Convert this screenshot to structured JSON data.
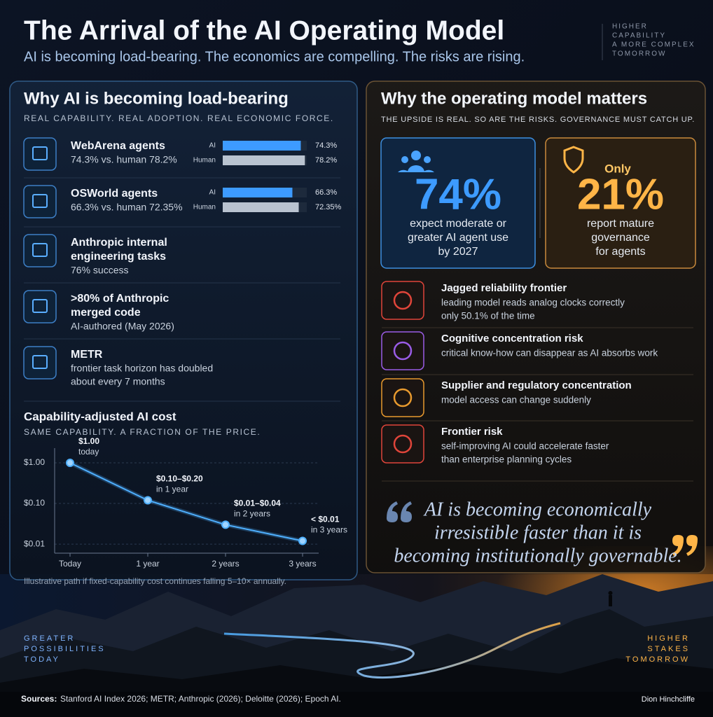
{
  "header": {
    "title": "The Arrival of the AI Operating Model",
    "subtitle": "AI is becoming load-bearing. The economics are compelling. The risks are rising.",
    "tagline": [
      "HIGHER",
      "CAPABILITY",
      "A MORE COMPLEX",
      "TOMORROW"
    ]
  },
  "left": {
    "heading": "Why AI is becoming load-bearing",
    "kicker": "REAL CAPABILITY. REAL ADOPTION. REAL ECONOMIC FORCE.",
    "items": [
      {
        "title": [
          "WebArena agents"
        ],
        "detail": [
          "74.3% vs. human 78.2%"
        ]
      },
      {
        "title": [
          "OSWorld agents"
        ],
        "detail": [
          "66.3% vs. human 72.35%"
        ]
      },
      {
        "title": [
          "Anthropic internal",
          "engineering tasks"
        ],
        "detail": [
          "76% success"
        ]
      },
      {
        "title": [
          ">80% of Anthropic",
          "merged code"
        ],
        "detail": [
          "AI-authored (May 2026)"
        ]
      },
      {
        "title": [
          "METR"
        ],
        "detail": [
          "frontier task horizon has doubled",
          "about every 7 months"
        ]
      }
    ]
  },
  "chart_data": [
    {
      "type": "bar",
      "orientation": "horizontal",
      "categories": [
        "AI",
        "Human"
      ],
      "values": [
        74.3,
        78.2
      ],
      "value_labels": [
        "74.3%",
        "78.2%"
      ],
      "colors": [
        "#3d9bff",
        "#b9c3d0"
      ],
      "xlim": [
        0,
        80
      ]
    },
    {
      "type": "bar",
      "orientation": "horizontal",
      "categories": [
        "AI",
        "Human"
      ],
      "values": [
        66.3,
        72.35
      ],
      "value_labels": [
        "66.3%",
        "72.35%"
      ],
      "colors": [
        "#3d9bff",
        "#b9c3d0"
      ],
      "xlim": [
        0,
        80
      ]
    },
    {
      "type": "line",
      "title": "Capability-adjusted AI cost",
      "subtitle": "SAME CAPABILITY. A FRACTION OF THE PRICE.",
      "categories": [
        "Today",
        "1 year",
        "2 years",
        "3 years"
      ],
      "values": [
        1,
        0.12,
        0.03,
        0.012
      ],
      "annotations": [
        {
          "label": "$1.00",
          "sub": "today"
        },
        {
          "label": "$0.10–$0.20",
          "sub": "in 1 year"
        },
        {
          "label": "$0.01–$0.04",
          "sub": "in 2 years"
        },
        {
          "label": "< $0.01",
          "sub": "in 3 years"
        }
      ],
      "log_scale": true,
      "ylim": [
        0.006,
        2.3
      ],
      "yticks": [
        {
          "value": 1,
          "label": "$1.00"
        },
        {
          "value": 0.1,
          "label": "$0.10"
        },
        {
          "value": 0.01,
          "label": "$0.01"
        }
      ],
      "grid": true,
      "color": "#4fb0ff",
      "note": "Illustrative path if fixed-capability cost continues falling 5–10× annually."
    }
  ],
  "right": {
    "heading": "Why the operating model matters",
    "kicker": "THE UPSIDE IS REAL. SO ARE THE RISKS. GOVERNANCE MUST CATCH UP.",
    "stats": [
      {
        "prefix": null,
        "figure": "74%",
        "detail": [
          "expect moderate or",
          "greater AI agent use",
          "by 2027"
        ]
      },
      {
        "prefix": "Only",
        "figure": "21%",
        "detail": [
          "report mature",
          "governance",
          "for agents"
        ]
      }
    ],
    "risks": [
      {
        "title": "Jagged reliability frontier",
        "detail": [
          "leading model reads analog clocks correctly",
          "only 50.1% of the time"
        ]
      },
      {
        "title": "Cognitive concentration risk",
        "detail": [
          "critical know-how can disappear as AI absorbs work"
        ]
      },
      {
        "title": "Supplier and regulatory concentration",
        "detail": [
          "model access can change suddenly"
        ]
      },
      {
        "title": "Frontier risk",
        "detail": [
          "self-improving AI could accelerate faster",
          "than enterprise planning cycles"
        ]
      }
    ],
    "quote": [
      "AI is becoming economically",
      "irresistible faster than it is",
      "becoming institutionally governable."
    ]
  },
  "scene": {
    "left": [
      "GREATER",
      "POSSIBILITIES",
      "TODAY"
    ],
    "right": [
      "HIGHER",
      "STAKES",
      "TOMORROW"
    ]
  },
  "footer": {
    "sources_label": "Sources:",
    "sources": "Stanford AI Index 2026; METR; Anthropic (2026); Deloitte (2026); Epoch AI.",
    "author": "Dion Hinchcliffe"
  }
}
